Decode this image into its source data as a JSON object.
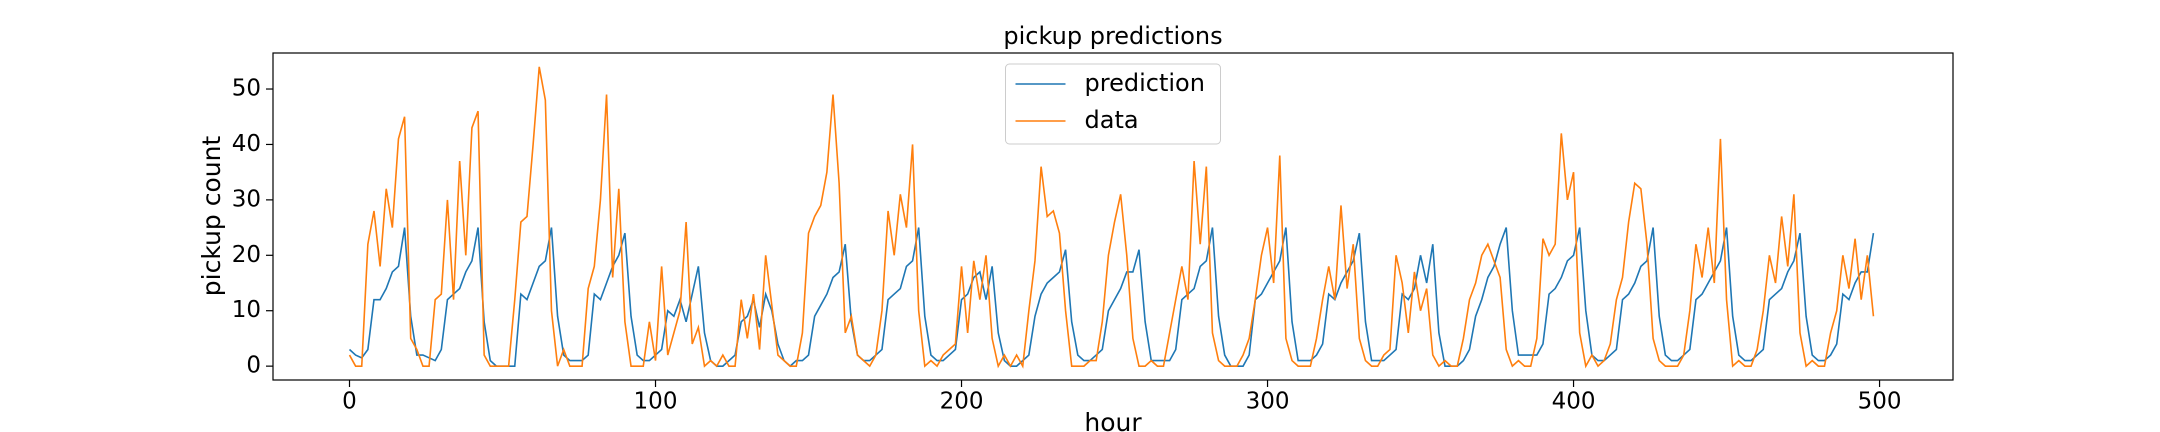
{
  "chart_data": {
    "type": "line",
    "title": "pickup predictions",
    "x_label": "hour",
    "y_label": "pickup count",
    "legend": "upper center",
    "grid": false,
    "xlim": [
      -25,
      524
    ],
    "ylim": [
      -2.5,
      56.5
    ],
    "xticks": [
      0,
      100,
      200,
      300,
      400,
      500
    ],
    "yticks": [
      0,
      10,
      20,
      30,
      40,
      50
    ],
    "x": [
      0,
      2,
      4,
      6,
      8,
      10,
      12,
      14,
      16,
      18,
      20,
      22,
      24,
      26,
      28,
      30,
      32,
      34,
      36,
      38,
      40,
      42,
      44,
      46,
      48,
      50,
      52,
      54,
      56,
      58,
      60,
      62,
      64,
      66,
      68,
      70,
      72,
      74,
      76,
      78,
      80,
      82,
      84,
      86,
      88,
      90,
      92,
      94,
      96,
      98,
      100,
      102,
      104,
      106,
      108,
      110,
      112,
      114,
      116,
      118,
      120,
      122,
      124,
      126,
      128,
      130,
      132,
      134,
      136,
      138,
      140,
      142,
      144,
      146,
      148,
      150,
      152,
      154,
      156,
      158,
      160,
      162,
      164,
      166,
      168,
      170,
      172,
      174,
      176,
      178,
      180,
      182,
      184,
      186,
      188,
      190,
      192,
      194,
      196,
      198,
      200,
      202,
      204,
      206,
      208,
      210,
      212,
      214,
      216,
      218,
      220,
      222,
      224,
      226,
      228,
      230,
      232,
      234,
      236,
      238,
      240,
      242,
      244,
      246,
      248,
      250,
      252,
      254,
      256,
      258,
      260,
      262,
      264,
      266,
      268,
      270,
      272,
      274,
      276,
      278,
      280,
      282,
      284,
      286,
      288,
      290,
      292,
      294,
      296,
      298,
      300,
      302,
      304,
      306,
      308,
      310,
      312,
      314,
      316,
      318,
      320,
      322,
      324,
      326,
      328,
      330,
      332,
      334,
      336,
      338,
      340,
      342,
      344,
      346,
      348,
      350,
      352,
      354,
      356,
      358,
      360,
      362,
      364,
      366,
      368,
      370,
      372,
      374,
      376,
      378,
      380,
      382,
      384,
      386,
      388,
      390,
      392,
      394,
      396,
      398,
      400,
      402,
      404,
      406,
      408,
      410,
      412,
      414,
      416,
      418,
      420,
      422,
      424,
      426,
      428,
      430,
      432,
      434,
      436,
      438,
      440,
      442,
      444,
      446,
      448,
      450,
      452,
      454,
      456,
      458,
      460,
      462,
      464,
      466,
      468,
      470,
      472,
      474,
      476,
      478,
      480,
      482,
      484,
      486,
      488,
      490,
      492,
      494,
      496,
      498
    ],
    "series": [
      {
        "name": "prediction",
        "color": "#1f77b4",
        "values": [
          3,
          2,
          1.5,
          3,
          12,
          12,
          14,
          17,
          18,
          25,
          9,
          2,
          2,
          1.5,
          1,
          3,
          12,
          13,
          14,
          17,
          19,
          25,
          8,
          1,
          0,
          0,
          0,
          0,
          13,
          12,
          15,
          18,
          19,
          25,
          9,
          2,
          1,
          1,
          1,
          2,
          13,
          12,
          15,
          18,
          20,
          24,
          9,
          2,
          1,
          1,
          2,
          3,
          10,
          9,
          12,
          8,
          13,
          18,
          6,
          1,
          0,
          0,
          1,
          2,
          8,
          9,
          12,
          7,
          13,
          10,
          4,
          1,
          0,
          1,
          1,
          2,
          9,
          11,
          13,
          16,
          17,
          22,
          8,
          2,
          1,
          1,
          2,
          3,
          12,
          13,
          14,
          18,
          19,
          25,
          9,
          2,
          1,
          1,
          2,
          3,
          12,
          13,
          16,
          17,
          12,
          18,
          6,
          1,
          0,
          0,
          1,
          2,
          9,
          13,
          15,
          16,
          17,
          21,
          8,
          2,
          1,
          1,
          2,
          3,
          10,
          12,
          14,
          17,
          17,
          21,
          8,
          1,
          1,
          1,
          1,
          3,
          12,
          13,
          14,
          18,
          19,
          25,
          9,
          2,
          0,
          0,
          0,
          2,
          12,
          13,
          15,
          17,
          19,
          25,
          8,
          1,
          1,
          1,
          2,
          4,
          13,
          12,
          15,
          17,
          19,
          24,
          8,
          1,
          1,
          1,
          2,
          3,
          13,
          12,
          14,
          20,
          15,
          22,
          6,
          0,
          0,
          0,
          1,
          3,
          9,
          12,
          16,
          18,
          22,
          25,
          10,
          2,
          2,
          2,
          2,
          4,
          13,
          14,
          16,
          19,
          20,
          25,
          10,
          2,
          1,
          1,
          2,
          3,
          12,
          13,
          15,
          18,
          19,
          25,
          9,
          2,
          1,
          1,
          2,
          3,
          12,
          13,
          15,
          17,
          19,
          25,
          9,
          2,
          1,
          1,
          2,
          3,
          12,
          13,
          14,
          17,
          19,
          24,
          9,
          2,
          1,
          1,
          2,
          4,
          13,
          12,
          15,
          17,
          17,
          24
        ]
      },
      {
        "name": "data",
        "color": "#ff7f0e",
        "values": [
          2,
          0,
          0,
          22,
          28,
          18,
          32,
          25,
          41,
          45,
          5,
          3,
          0,
          0,
          12,
          13,
          30,
          12,
          37,
          20,
          43,
          46,
          2,
          0,
          0,
          0,
          0,
          12,
          26,
          27,
          40,
          54,
          48,
          10,
          0,
          3,
          0,
          0,
          0,
          14,
          18,
          30,
          49,
          16,
          32,
          8,
          0,
          0,
          0,
          8,
          1,
          18,
          2,
          6,
          10,
          26,
          4,
          7,
          0,
          1,
          0,
          2,
          0,
          0,
          12,
          5,
          13,
          3,
          20,
          11,
          2,
          1,
          0,
          0,
          6,
          24,
          27,
          29,
          35,
          49,
          33,
          6,
          9,
          2,
          1,
          0,
          2,
          10,
          28,
          20,
          31,
          25,
          40,
          10,
          0,
          1,
          0,
          2,
          3,
          4,
          18,
          6,
          19,
          12,
          20,
          5,
          0,
          2,
          0,
          2,
          0,
          10,
          19,
          36,
          27,
          28,
          24,
          10,
          0,
          0,
          0,
          1,
          1,
          8,
          20,
          26,
          31,
          20,
          5,
          0,
          0,
          1,
          0,
          0,
          6,
          12,
          18,
          12,
          37,
          22,
          36,
          6,
          1,
          0,
          0,
          0,
          2,
          5,
          12,
          20,
          25,
          15,
          38,
          5,
          1,
          0,
          0,
          0,
          5,
          12,
          18,
          12,
          29,
          14,
          22,
          5,
          1,
          0,
          0,
          2,
          3,
          20,
          15,
          6,
          17,
          10,
          14,
          2,
          0,
          1,
          0,
          0,
          5,
          12,
          15,
          20,
          22,
          19,
          16,
          3,
          0,
          1,
          0,
          0,
          5,
          23,
          20,
          22,
          42,
          30,
          35,
          6,
          0,
          2,
          0,
          1,
          4,
          12,
          16,
          26,
          33,
          32,
          22,
          5,
          1,
          0,
          0,
          0,
          2,
          10,
          22,
          16,
          25,
          15,
          41,
          12,
          0,
          1,
          0,
          0,
          3,
          10,
          20,
          15,
          27,
          18,
          31,
          6,
          0,
          1,
          0,
          0,
          6,
          10,
          20,
          14,
          23,
          12,
          20,
          9
        ]
      }
    ]
  }
}
